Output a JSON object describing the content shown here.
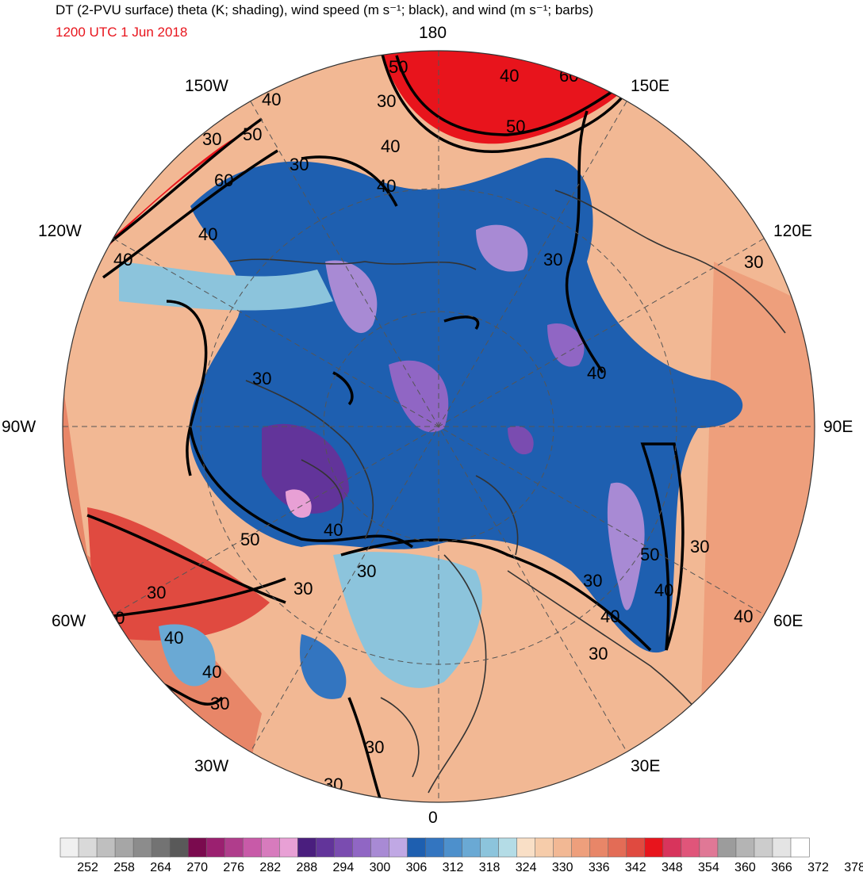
{
  "header": {
    "title": "DT (2-PVU surface) theta (K; shading), wind speed (m s⁻¹; black), and wind (m s⁻¹; barbs)",
    "valid_time": "1200 UTC 1 Jun 2018"
  },
  "map": {
    "projection": "north-polar-stereographic",
    "longitude_labels": [
      "180",
      "150E",
      "120E",
      "90E",
      "60E",
      "30E",
      "0",
      "30W",
      "60W",
      "90W",
      "120W",
      "150W"
    ],
    "jet_contour_labels": [
      "30",
      "40",
      "50",
      "60"
    ],
    "colors": {
      "cold_core": "#1e5fb0",
      "coldest": "#9a7fd0",
      "warm": "#f2b894",
      "hot": "#e8141c",
      "contour": "#000000",
      "coastline": "#333333"
    }
  },
  "colorbar": {
    "tick_labels": [
      "252",
      "258",
      "264",
      "270",
      "276",
      "282",
      "288",
      "294",
      "300",
      "306",
      "312",
      "318",
      "324",
      "330",
      "336",
      "342",
      "348",
      "354",
      "360",
      "366",
      "372",
      "378"
    ],
    "colors": [
      "#f0f0f0",
      "#d9d9d9",
      "#bfbfbf",
      "#a6a6a6",
      "#8c8c8c",
      "#737373",
      "#595959",
      "#7a0a4e",
      "#9b2070",
      "#b03d8c",
      "#c85aa8",
      "#d77bbd",
      "#e8a0d5",
      "#4a1e7e",
      "#62349a",
      "#7a4cb0",
      "#9066c4",
      "#a88ad4",
      "#c0a8e4",
      "#1e5fb0",
      "#3375c0",
      "#4d90cc",
      "#6aa9d4",
      "#8cc4dc",
      "#b4dce6",
      "#f9dfc6",
      "#f6ccaa",
      "#f2b894",
      "#ee9f7c",
      "#e88668",
      "#e36c56",
      "#e04a40",
      "#e8141c",
      "#d8345c",
      "#e0557a",
      "#e07896",
      "#9c9c9c",
      "#b4b4b4",
      "#cccccc",
      "#e4e4e4",
      "#ffffff"
    ]
  }
}
